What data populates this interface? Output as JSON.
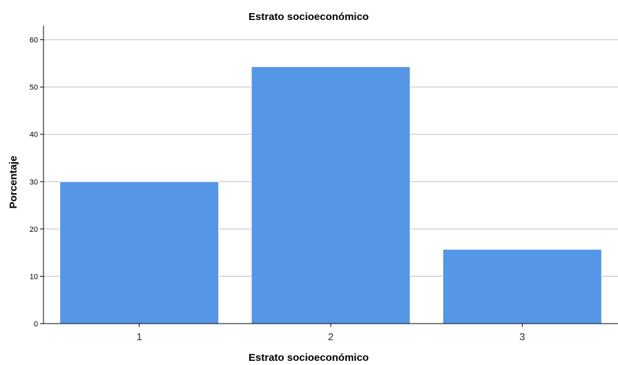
{
  "chart_data": {
    "type": "bar",
    "title": "Estrato socioeconómico",
    "xlabel": "Estrato socioeconómico",
    "ylabel": "Porcentaje",
    "categories": [
      "1",
      "2",
      "3"
    ],
    "values": [
      30.0,
      54.3,
      15.7
    ],
    "ylim": [
      0,
      63
    ],
    "yticks": [
      0,
      10,
      20,
      30,
      40,
      50,
      60
    ],
    "grid": true,
    "legend": "none",
    "colors": {
      "bar_fill": "#5596e6",
      "bar_edge": "#ffffff",
      "grid": "#bdbdbd",
      "axis": "#000000",
      "background": "#ffffff"
    }
  }
}
